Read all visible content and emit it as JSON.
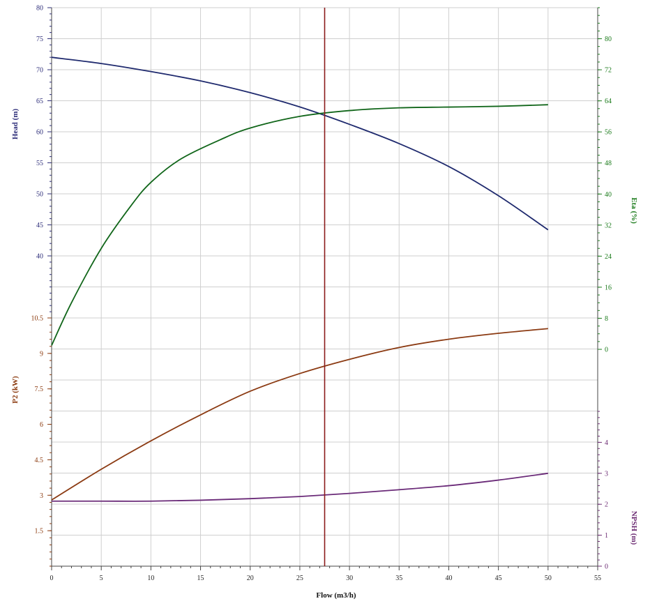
{
  "chart_data": {
    "type": "line",
    "x_axis": {
      "label": "Flow (m3/h)",
      "range": [
        0,
        55
      ],
      "ticks": [
        0,
        5,
        10,
        15,
        20,
        25,
        30,
        35,
        40,
        45,
        50,
        55
      ]
    },
    "axes": {
      "head": {
        "label": "Head (m)",
        "color": "#2e2e7a",
        "side": "left",
        "range": [
          30,
          80
        ],
        "ticks": [
          40,
          45,
          50,
          55,
          60,
          65,
          70,
          75,
          80
        ]
      },
      "eta": {
        "label": "Eta (%)",
        "color": "#1a7a1a",
        "side": "right",
        "range": [
          0,
          88
        ],
        "ticks": [
          0,
          8,
          16,
          24,
          32,
          40,
          48,
          56,
          64,
          72,
          80
        ]
      },
      "p2": {
        "label": "P2 (kW)",
        "color": "#8b3a0e",
        "side": "left",
        "range": [
          0,
          10.5
        ],
        "ticks": [
          1.5,
          3,
          4.5,
          6,
          7.5,
          9,
          10.5
        ]
      },
      "npsh": {
        "label": "NPSH (m)",
        "color": "#6b2a72",
        "side": "right",
        "range": [
          0,
          5
        ],
        "ticks": [
          0,
          1,
          2,
          3,
          4
        ]
      }
    },
    "series": [
      {
        "axis": "head",
        "color": "#1f2a6e",
        "x": [
          0,
          5,
          10,
          15,
          20,
          25,
          30,
          35,
          40,
          45,
          50
        ],
        "y": [
          72,
          71,
          69.7,
          68.2,
          66.3,
          64,
          61.2,
          58.1,
          54.4,
          49.7,
          44.2
        ]
      },
      {
        "axis": "eta",
        "color": "#11661a",
        "x": [
          0,
          2,
          5,
          8,
          10,
          13,
          17,
          20,
          25,
          30,
          35,
          40,
          45,
          50
        ],
        "y": [
          1,
          12,
          26,
          37,
          43,
          49,
          54,
          57,
          60,
          61.5,
          62.2,
          62.4,
          62.6,
          63
        ]
      },
      {
        "axis": "p2",
        "color": "#8b3a12",
        "x": [
          0,
          5,
          10,
          15,
          20,
          25,
          30,
          35,
          40,
          45,
          50
        ],
        "y": [
          2.8,
          4.1,
          5.3,
          6.4,
          7.4,
          8.15,
          8.75,
          9.25,
          9.6,
          9.85,
          10.05
        ]
      },
      {
        "axis": "npsh",
        "color": "#6a2a78",
        "x": [
          0,
          5,
          10,
          15,
          20,
          25,
          30,
          35,
          40,
          45,
          50
        ],
        "y": [
          2.1,
          2.1,
          2.1,
          2.13,
          2.18,
          2.25,
          2.35,
          2.47,
          2.6,
          2.78,
          3.0
        ]
      }
    ],
    "marker": {
      "x": 27.5,
      "color": "#8b1a1a"
    }
  }
}
